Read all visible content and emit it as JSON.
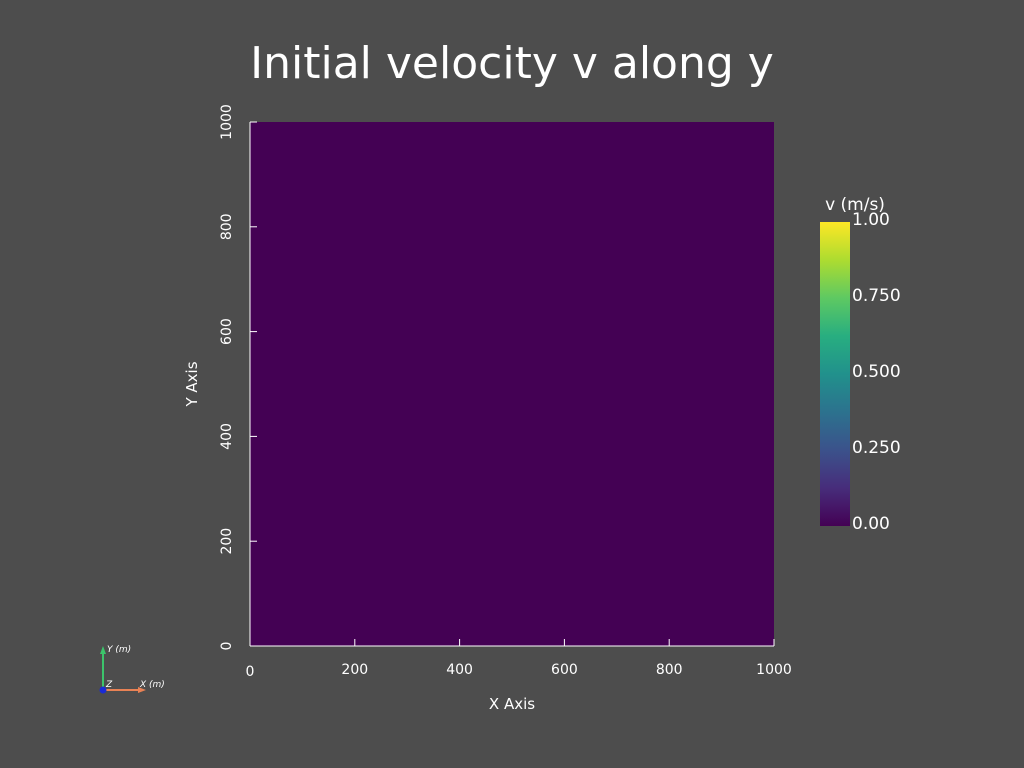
{
  "colors": {
    "background": "#4d4d4d",
    "field": "#440154",
    "axis": "#ffffff"
  },
  "chart_data": {
    "type": "heatmap",
    "title": "Initial velocity v along y",
    "xlabel": "X Axis",
    "ylabel": "Y Axis",
    "xlim": [
      0,
      1000
    ],
    "ylim": [
      0,
      1000
    ],
    "xticks": [
      "0",
      "200",
      "400",
      "600",
      "800",
      "1000"
    ],
    "yticks": [
      "0",
      "200",
      "400",
      "600",
      "800",
      "1000"
    ],
    "field_value": 0.0,
    "colorbar": {
      "title": "v (m/s)",
      "range": [
        0.0,
        1.0
      ],
      "ticks": [
        "0.00",
        "0.250",
        "0.500",
        "0.750",
        "1.00"
      ],
      "colormap": "viridis"
    }
  },
  "orientation_triad": {
    "y_label": "Y (m)",
    "x_label": "X (m)",
    "z_label": "Z"
  }
}
